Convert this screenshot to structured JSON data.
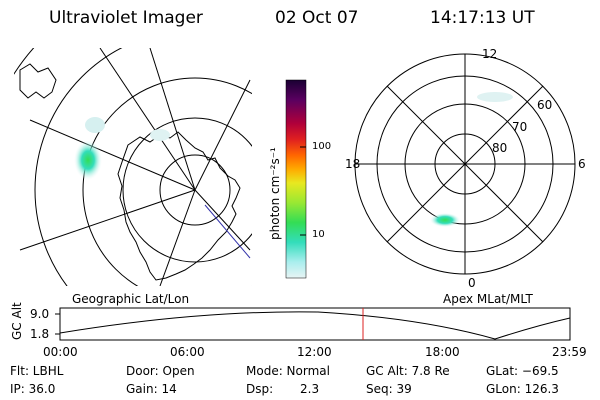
{
  "header": {
    "title": "Ultraviolet Imager",
    "date": "02 Oct 07",
    "time": "14:17:13 UT"
  },
  "left_map": {
    "label": "Geographic Lat/Lon"
  },
  "right_map": {
    "label": "Apex MLat/MLT",
    "mlt_labels": {
      "top": "12",
      "left": "18",
      "right": "6",
      "bottom": "0"
    },
    "lat_labels": [
      "60",
      "70",
      "80"
    ]
  },
  "colorbar": {
    "unit": "photon cm⁻²s⁻¹",
    "ticks": [
      "100",
      "10"
    ],
    "colors": [
      "#1a0033",
      "#5a0060",
      "#b0003a",
      "#e02020",
      "#ff6600",
      "#ffaa00",
      "#e8e820",
      "#99e833",
      "#33dd55",
      "#33ddbb",
      "#aaeeee",
      "#e0f0f0"
    ]
  },
  "altitude_plot": {
    "axis_label": "GC Alt",
    "y_ticks": [
      "9.0",
      "1.8"
    ],
    "x_ticks": [
      "00:00",
      "06:00",
      "12:00",
      "18:00",
      "23:59"
    ],
    "current_time_color": "#dd2222"
  },
  "info": {
    "flt": "Flt: LBHL",
    "door": "Door: Open",
    "mode": "Mode: Normal",
    "gc_alt": "GC Alt: 7.8 Re",
    "glat": "GLat: −69.5",
    "ip": "IP: 36.0",
    "gain": "Gain: 14",
    "dsp_label": "Dsp:",
    "dsp_value": "2.3",
    "seq": "Seq: 39",
    "glon": "GLon: 126.3"
  }
}
